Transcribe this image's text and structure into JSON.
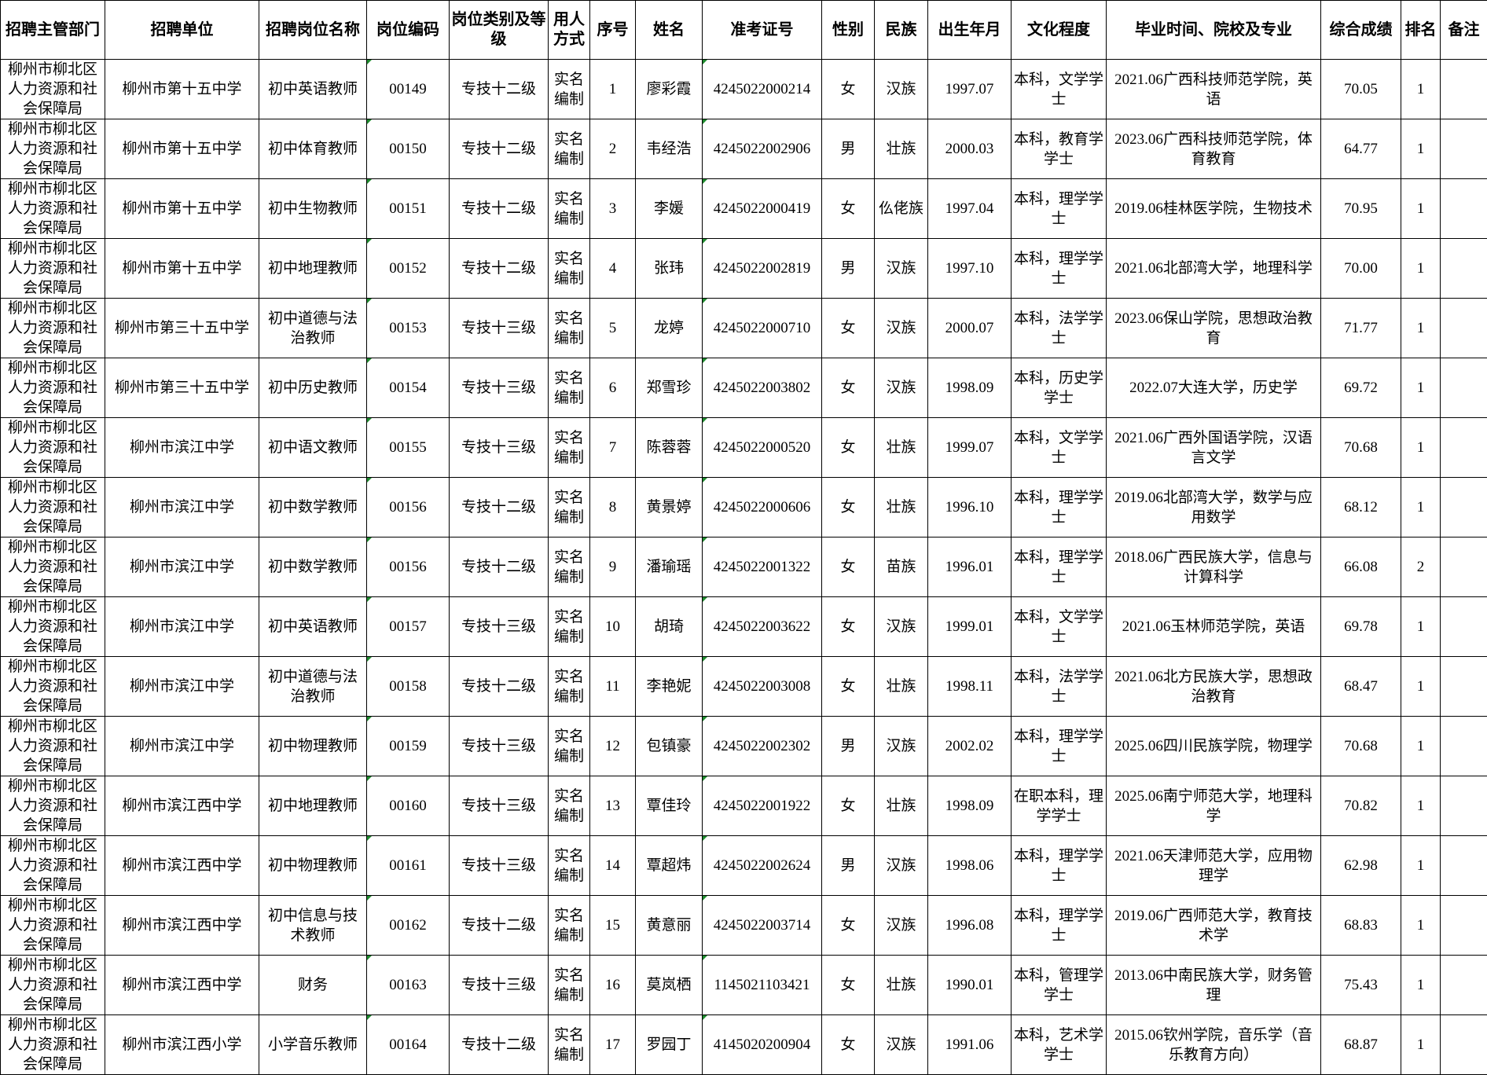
{
  "headers": [
    "招聘主管部门",
    "招聘单位",
    "招聘岗位名称",
    "岗位编码",
    "岗位类别及等级",
    "用人方式",
    "序号",
    "姓名",
    "准考证号",
    "性别",
    "民族",
    "出生年月",
    "文化程度",
    "毕业时间、院校及专业",
    "综合成绩",
    "排名",
    "备注"
  ],
  "rows": [
    [
      "柳州市柳北区人力资源和社会保障局",
      "柳州市第十五中学",
      "初中英语教师",
      "00149",
      "专技十二级",
      "实名编制",
      "1",
      "廖彩霞",
      "4245022000214",
      "女",
      "汉族",
      "1997.07",
      "本科，文学学士",
      "2021.06广西科技师范学院，英语",
      "70.05",
      "1",
      ""
    ],
    [
      "柳州市柳北区人力资源和社会保障局",
      "柳州市第十五中学",
      "初中体育教师",
      "00150",
      "专技十二级",
      "实名编制",
      "2",
      "韦经浩",
      "4245022002906",
      "男",
      "壮族",
      "2000.03",
      "本科，教育学学士",
      "2023.06广西科技师范学院，体育教育",
      "64.77",
      "1",
      ""
    ],
    [
      "柳州市柳北区人力资源和社会保障局",
      "柳州市第十五中学",
      "初中生物教师",
      "00151",
      "专技十二级",
      "实名编制",
      "3",
      "李媛",
      "4245022000419",
      "女",
      "仫佬族",
      "1997.04",
      "本科，理学学士",
      "2019.06桂林医学院，生物技术",
      "70.95",
      "1",
      ""
    ],
    [
      "柳州市柳北区人力资源和社会保障局",
      "柳州市第十五中学",
      "初中地理教师",
      "00152",
      "专技十二级",
      "实名编制",
      "4",
      "张玮",
      "4245022002819",
      "男",
      "汉族",
      "1997.10",
      "本科，理学学士",
      "2021.06北部湾大学，地理科学",
      "70.00",
      "1",
      ""
    ],
    [
      "柳州市柳北区人力资源和社会保障局",
      "柳州市第三十五中学",
      "初中道德与法治教师",
      "00153",
      "专技十三级",
      "实名编制",
      "5",
      "龙婷",
      "4245022000710",
      "女",
      "汉族",
      "2000.07",
      "本科，法学学士",
      "2023.06保山学院，思想政治教育",
      "71.77",
      "1",
      ""
    ],
    [
      "柳州市柳北区人力资源和社会保障局",
      "柳州市第三十五中学",
      "初中历史教师",
      "00154",
      "专技十三级",
      "实名编制",
      "6",
      "郑雪珍",
      "4245022003802",
      "女",
      "汉族",
      "1998.09",
      "本科，历史学学士",
      "2022.07大连大学，历史学",
      "69.72",
      "1",
      ""
    ],
    [
      "柳州市柳北区人力资源和社会保障局",
      "柳州市滨江中学",
      "初中语文教师",
      "00155",
      "专技十三级",
      "实名编制",
      "7",
      "陈蓉蓉",
      "4245022000520",
      "女",
      "壮族",
      "1999.07",
      "本科，文学学士",
      "2021.06广西外国语学院，汉语言文学",
      "70.68",
      "1",
      ""
    ],
    [
      "柳州市柳北区人力资源和社会保障局",
      "柳州市滨江中学",
      "初中数学教师",
      "00156",
      "专技十二级",
      "实名编制",
      "8",
      "黄景婷",
      "4245022000606",
      "女",
      "壮族",
      "1996.10",
      "本科，理学学士",
      "2019.06北部湾大学，数学与应用数学",
      "68.12",
      "1",
      ""
    ],
    [
      "柳州市柳北区人力资源和社会保障局",
      "柳州市滨江中学",
      "初中数学教师",
      "00156",
      "专技十二级",
      "实名编制",
      "9",
      "潘瑜瑶",
      "4245022001322",
      "女",
      "苗族",
      "1996.01",
      "本科，理学学士",
      "2018.06广西民族大学，信息与计算科学",
      "66.08",
      "2",
      ""
    ],
    [
      "柳州市柳北区人力资源和社会保障局",
      "柳州市滨江中学",
      "初中英语教师",
      "00157",
      "专技十三级",
      "实名编制",
      "10",
      "胡琦",
      "4245022003622",
      "女",
      "汉族",
      "1999.01",
      "本科，文学学士",
      "2021.06玉林师范学院，英语",
      "69.78",
      "1",
      ""
    ],
    [
      "柳州市柳北区人力资源和社会保障局",
      "柳州市滨江中学",
      "初中道德与法治教师",
      "00158",
      "专技十二级",
      "实名编制",
      "11",
      "李艳妮",
      "4245022003008",
      "女",
      "壮族",
      "1998.11",
      "本科，法学学士",
      "2021.06北方民族大学，思想政治教育",
      "68.47",
      "1",
      ""
    ],
    [
      "柳州市柳北区人力资源和社会保障局",
      "柳州市滨江中学",
      "初中物理教师",
      "00159",
      "专技十三级",
      "实名编制",
      "12",
      "包镇豪",
      "4245022002302",
      "男",
      "汉族",
      "2002.02",
      "本科，理学学士",
      "2025.06四川民族学院，物理学",
      "70.68",
      "1",
      ""
    ],
    [
      "柳州市柳北区人力资源和社会保障局",
      "柳州市滨江西中学",
      "初中地理教师",
      "00160",
      "专技十三级",
      "实名编制",
      "13",
      "覃佳玲",
      "4245022001922",
      "女",
      "壮族",
      "1998.09",
      "在职本科，理学学士",
      "2025.06南宁师范大学，地理科学",
      "70.82",
      "1",
      ""
    ],
    [
      "柳州市柳北区人力资源和社会保障局",
      "柳州市滨江西中学",
      "初中物理教师",
      "00161",
      "专技十三级",
      "实名编制",
      "14",
      "覃超炜",
      "4245022002624",
      "男",
      "汉族",
      "1998.06",
      "本科，理学学士",
      "2021.06天津师范大学，应用物理学",
      "62.98",
      "1",
      ""
    ],
    [
      "柳州市柳北区人力资源和社会保障局",
      "柳州市滨江西中学",
      "初中信息与技术教师",
      "00162",
      "专技十二级",
      "实名编制",
      "15",
      "黄意丽",
      "4245022003714",
      "女",
      "汉族",
      "1996.08",
      "本科，理学学士",
      "2019.06广西师范大学，教育技术学",
      "68.83",
      "1",
      ""
    ],
    [
      "柳州市柳北区人力资源和社会保障局",
      "柳州市滨江西中学",
      "财务",
      "00163",
      "专技十三级",
      "实名编制",
      "16",
      "莫岚栖",
      "1145021103421",
      "女",
      "壮族",
      "1990.01",
      "本科，管理学学士",
      "2013.06中南民族大学，财务管理",
      "75.43",
      "1",
      ""
    ],
    [
      "柳州市柳北区人力资源和社会保障局",
      "柳州市滨江西小学",
      "小学音乐教师",
      "00164",
      "专技十二级",
      "实名编制",
      "17",
      "罗园丁",
      "4145020200904",
      "女",
      "汉族",
      "1991.06",
      "本科，艺术学学士",
      "2015.06钦州学院，音乐学（音乐教育方向）",
      "68.87",
      "1",
      ""
    ]
  ]
}
